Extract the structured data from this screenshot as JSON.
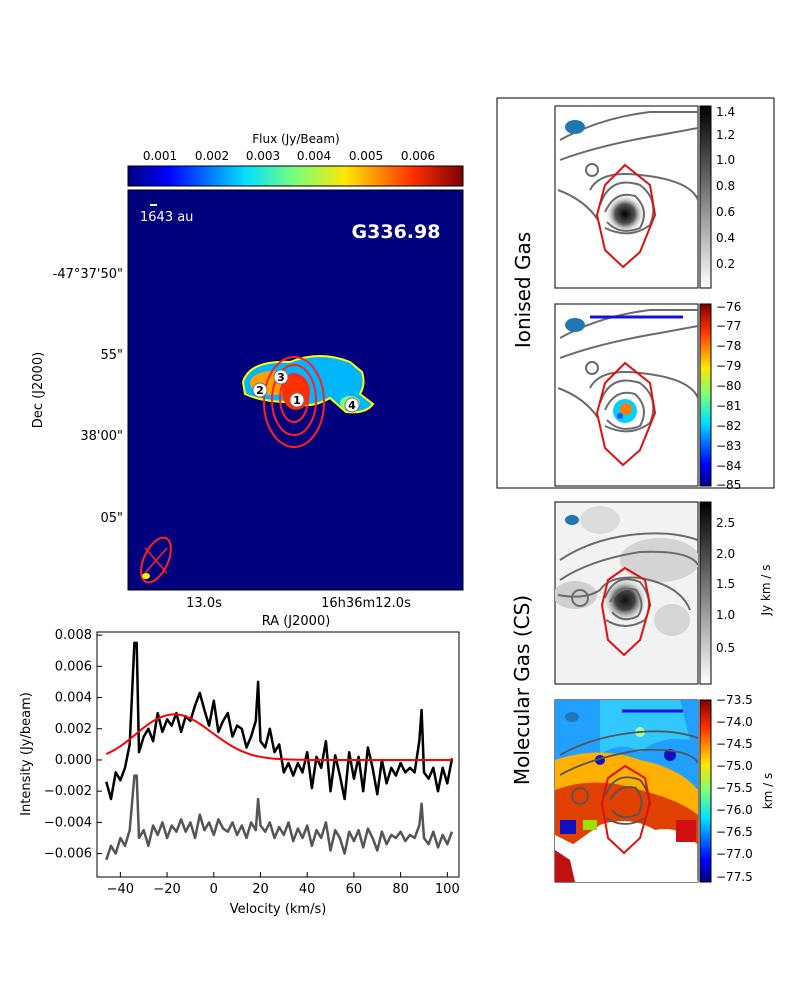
{
  "map": {
    "colorbar_label": "Flux (Jy/Beam)",
    "colorbar_ticks": [
      "0.001",
      "0.002",
      "0.003",
      "0.004",
      "0.005",
      "0.006"
    ],
    "scalebar_label": "1643 au",
    "source_name": "G336.98",
    "xlabel": "RA (J2000)",
    "ylabel": "Dec (J2000)",
    "xticks": [
      "13.0s",
      "16h36m12.0s"
    ],
    "yticks": [
      "-47°37'50\"",
      "55\"",
      "38'00\"",
      "05\""
    ],
    "markers": [
      "1",
      "2",
      "3",
      "4"
    ]
  },
  "chart_data": {
    "type": "line",
    "title": "",
    "xlabel": "Velocity (km/s)",
    "ylabel": "Intensity (Jy/beam)",
    "xlim": [
      -50,
      105
    ],
    "ylim": [
      -0.0075,
      0.0082
    ],
    "xticks": [
      "−40",
      "−20",
      "0",
      "20",
      "40",
      "60",
      "80",
      "100"
    ],
    "yticks": [
      "0.008",
      "0.006",
      "0.004",
      "0.002",
      "0.000",
      "−0.002",
      "−0.004",
      "−0.006"
    ],
    "x": [
      -46,
      -44,
      -42,
      -40,
      -38,
      -36,
      -34,
      -33,
      -32,
      -30,
      -28,
      -26,
      -24,
      -22,
      -20,
      -18,
      -16,
      -14,
      -12,
      -10,
      -8,
      -6,
      -4,
      -2,
      0,
      2,
      4,
      6,
      8,
      10,
      12,
      14,
      16,
      18,
      19,
      20,
      22,
      24,
      26,
      28,
      30,
      32,
      34,
      36,
      38,
      40,
      42,
      44,
      46,
      48,
      50,
      52,
      54,
      56,
      58,
      60,
      62,
      64,
      66,
      68,
      70,
      72,
      74,
      76,
      78,
      80,
      82,
      84,
      86,
      88,
      89,
      90,
      92,
      94,
      96,
      98,
      100,
      102
    ],
    "series": [
      {
        "name": "spectrum",
        "color": "#000000",
        "values": [
          -0.0014,
          -0.0025,
          -0.0008,
          -0.0013,
          -0.0005,
          0.001,
          0.0075,
          0.0075,
          0.0005,
          0.0015,
          0.002,
          0.0012,
          0.003,
          0.0018,
          0.0026,
          0.0022,
          0.003,
          0.0018,
          0.0028,
          0.0025,
          0.0035,
          0.0043,
          0.0032,
          0.0022,
          0.0038,
          0.0018,
          0.0025,
          0.003,
          0.0015,
          0.0022,
          0.002,
          0.0008,
          0.0015,
          0.0025,
          0.005,
          0.0012,
          0.0008,
          0.002,
          0.0005,
          0.001,
          -0.0008,
          -0.0002,
          -0.001,
          -0.0002,
          -0.0008,
          0.0005,
          -0.0018,
          0.0002,
          -0.0005,
          0.0012,
          -0.002,
          0.0003,
          -0.001,
          -0.0025,
          0.0005,
          -0.0012,
          0.0002,
          -0.002,
          0.0008,
          -0.0005,
          -0.0022,
          0.0,
          -0.0015,
          -0.0005,
          -0.001,
          -0.0002,
          -0.0008,
          -0.0005,
          -0.0008,
          0.0012,
          0.0032,
          -0.0008,
          -0.0012,
          -0.0005,
          -0.002,
          -0.0005,
          -0.0015,
          0.0001
        ]
      },
      {
        "name": "gaussian fit",
        "color": "#ff0000",
        "values": [
          0.00038,
          0.00052,
          0.00069,
          0.00088,
          0.0011,
          0.00134,
          0.00158,
          0.0017,
          0.00183,
          0.00207,
          0.00229,
          0.00249,
          0.00265,
          0.00278,
          0.00287,
          0.00292,
          0.00292,
          0.00288,
          0.00279,
          0.00266,
          0.0025,
          0.00232,
          0.00211,
          0.00189,
          0.00167,
          0.00145,
          0.00124,
          0.00104,
          0.00086,
          0.0007,
          0.00056,
          0.00044,
          0.00034,
          0.00026,
          0.00023,
          0.0002,
          0.00015,
          0.00011,
          8e-05,
          6e-05,
          4e-05,
          3e-05,
          2e-05,
          1e-05,
          1e-05,
          0,
          0,
          0,
          0,
          0,
          0,
          0,
          0,
          0,
          0,
          0,
          0,
          0,
          0,
          0,
          0,
          0,
          0,
          0,
          0,
          0,
          0,
          0,
          0,
          0,
          0,
          0,
          0,
          0,
          0,
          0,
          0,
          0
        ]
      },
      {
        "name": "offset spectrum",
        "color": "#555555",
        "values": [
          -0.0064,
          -0.0055,
          -0.006,
          -0.005,
          -0.0055,
          -0.0045,
          -0.001,
          -0.001,
          -0.005,
          -0.0045,
          -0.0055,
          -0.0042,
          -0.0048,
          -0.004,
          -0.005,
          -0.0042,
          -0.0046,
          -0.0038,
          -0.0046,
          -0.004,
          -0.005,
          -0.0035,
          -0.0045,
          -0.004,
          -0.0048,
          -0.0038,
          -0.0044,
          -0.0046,
          -0.004,
          -0.0048,
          -0.0042,
          -0.005,
          -0.004,
          -0.0045,
          -0.0025,
          -0.0042,
          -0.0046,
          -0.004,
          -0.005,
          -0.0043,
          -0.0048,
          -0.004,
          -0.0052,
          -0.0044,
          -0.005,
          -0.0042,
          -0.0055,
          -0.0045,
          -0.005,
          -0.004,
          -0.0058,
          -0.0045,
          -0.005,
          -0.006,
          -0.0046,
          -0.0052,
          -0.0045,
          -0.0056,
          -0.0044,
          -0.005,
          -0.0058,
          -0.0046,
          -0.0054,
          -0.0048,
          -0.005,
          -0.0046,
          -0.0052,
          -0.0048,
          -0.005,
          -0.0042,
          -0.0028,
          -0.005,
          -0.0054,
          -0.0046,
          -0.0056,
          -0.0048,
          -0.0054,
          -0.0046
        ]
      }
    ]
  },
  "ionised": {
    "section_label": "Ionised Gas",
    "int_ticks": [
      "1.4",
      "1.2",
      "1.0",
      "0.8",
      "0.6",
      "0.4",
      "0.2"
    ],
    "vel_ticks": [
      "−76",
      "−77",
      "−78",
      "−79",
      "−80",
      "−81",
      "−82",
      "−83",
      "−84",
      "−85"
    ]
  },
  "molecular": {
    "section_label": "Molecular Gas (CS)",
    "int_ticks": [
      "2.5",
      "2.0",
      "1.5",
      "1.0",
      "0.5"
    ],
    "int_unit": "Jy km / s",
    "vel_ticks": [
      "−73.5",
      "−74.0",
      "−74.5",
      "−75.0",
      "−75.5",
      "−76.0",
      "−76.5",
      "−77.0",
      "−77.5"
    ],
    "vel_unit": "km / s"
  }
}
